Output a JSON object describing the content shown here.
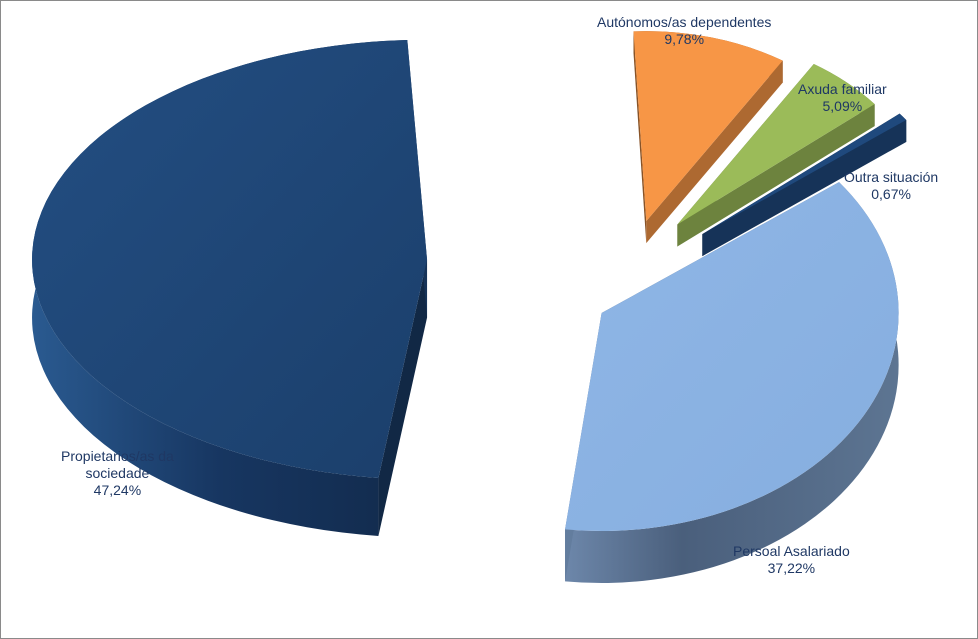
{
  "chart_data": {
    "type": "pie",
    "style": "3d-exploded",
    "slices": [
      {
        "label_lines": [
          "Autónomos/as dependentes"
        ],
        "value_text": "9,78%",
        "value": 9.78,
        "color": "#f79646"
      },
      {
        "label_lines": [
          "Axuda familiar"
        ],
        "value_text": "5,09%",
        "value": 5.09,
        "color": "#9bbb59"
      },
      {
        "label_lines": [
          "Outra situación"
        ],
        "value_text": "0,67%",
        "value": 0.67,
        "color": "#1f497d"
      },
      {
        "label_lines": [
          "Persoal Asalariado"
        ],
        "value_text": "37,22%",
        "value": 37.22,
        "color": "#8db3e2"
      },
      {
        "label_lines": [
          "Propietarios/as da",
          "sociedade"
        ],
        "value_text": "47,24%",
        "value": 47.24,
        "color": "#1f497d"
      }
    ]
  }
}
